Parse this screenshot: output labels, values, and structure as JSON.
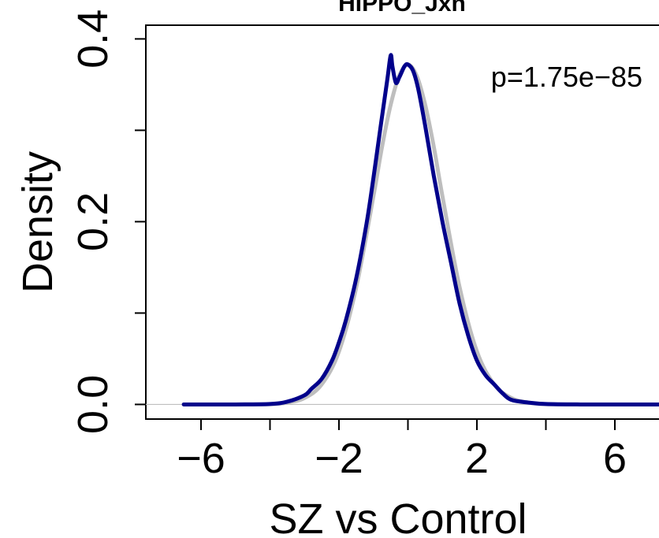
{
  "chart_data": {
    "type": "line",
    "title": "HIPPO_Jxn",
    "xlabel": "SZ vs Control",
    "ylabel": "Density",
    "xlim": [
      -7.6,
      7.6
    ],
    "ylim": [
      -0.016,
      0.415
    ],
    "x_ticks": [
      -6,
      -4,
      -2,
      0,
      2,
      4,
      6
    ],
    "x_tick_labels": [
      "−6",
      "",
      "−2",
      "",
      "2",
      "",
      "6"
    ],
    "y_ticks": [
      0.0,
      0.1,
      0.2,
      0.3,
      0.4
    ],
    "y_tick_labels": [
      "0.0",
      "",
      "0.2",
      "",
      "0.4"
    ],
    "annotation": "p=1.75e−85",
    "hline_y": 0,
    "series": [
      {
        "color": "#bebebe",
        "x": [
          -6.5,
          -5.0,
          -4.0,
          -3.5,
          -3.0,
          -2.5,
          -2.0,
          -1.5,
          -1.0,
          -0.75,
          -0.5,
          -0.25,
          0.0,
          0.25,
          0.5,
          0.75,
          1.0,
          1.5,
          2.0,
          2.5,
          3.0,
          3.5,
          4.0,
          5.0,
          6.0,
          7.6
        ],
        "y": [
          0.0,
          0.0,
          0.0003,
          0.002,
          0.007,
          0.022,
          0.058,
          0.128,
          0.228,
          0.282,
          0.328,
          0.36,
          0.372,
          0.36,
          0.328,
          0.282,
          0.228,
          0.128,
          0.058,
          0.022,
          0.007,
          0.002,
          0.0003,
          0.0,
          0.0,
          0.0
        ]
      },
      {
        "color": "#00008b",
        "x": [
          -6.5,
          -5.0,
          -4.0,
          -3.5,
          -3.0,
          -2.8,
          -2.5,
          -2.2,
          -2.0,
          -1.8,
          -1.5,
          -1.2,
          -1.0,
          -0.8,
          -0.6,
          -0.5,
          -0.45,
          -0.35,
          -0.25,
          -0.1,
          0.0,
          0.15,
          0.3,
          0.5,
          0.75,
          1.0,
          1.25,
          1.5,
          1.75,
          2.0,
          2.25,
          2.5,
          2.75,
          3.0,
          3.5,
          4.0,
          5.0,
          6.0,
          7.6
        ],
        "y": [
          0.0,
          0.0,
          0.0005,
          0.003,
          0.01,
          0.017,
          0.028,
          0.048,
          0.068,
          0.092,
          0.138,
          0.198,
          0.248,
          0.302,
          0.355,
          0.382,
          0.37,
          0.352,
          0.358,
          0.37,
          0.372,
          0.365,
          0.345,
          0.305,
          0.25,
          0.2,
          0.155,
          0.11,
          0.075,
          0.048,
          0.032,
          0.022,
          0.012,
          0.005,
          0.002,
          0.0005,
          0.0,
          0.0,
          0.0
        ]
      }
    ]
  }
}
